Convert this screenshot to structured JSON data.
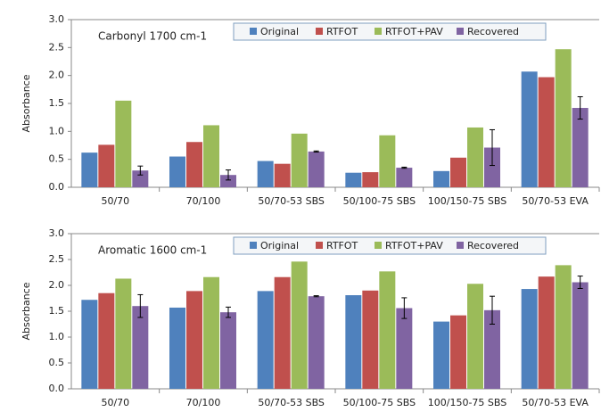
{
  "chart_data": [
    {
      "type": "bar",
      "annotation": "Carbonyl 1700 cm-1",
      "y_label": "Absorbance",
      "categories": [
        "50/70",
        "70/100",
        "50/70-53 SBS",
        "50/100-75 SBS",
        "100/150-75 SBS",
        "50/70-53 EVA"
      ],
      "series": [
        {
          "name": "Original",
          "color": "#4f81bd",
          "values": [
            0.62,
            0.55,
            0.47,
            0.26,
            0.29,
            2.07
          ]
        },
        {
          "name": "RTFOT",
          "color": "#c0504d",
          "values": [
            0.76,
            0.81,
            0.42,
            0.27,
            0.53,
            1.97
          ]
        },
        {
          "name": "RTFOT+PAV",
          "color": "#9bbb59",
          "values": [
            1.55,
            1.11,
            0.96,
            0.93,
            1.07,
            2.47
          ]
        },
        {
          "name": "Recovered",
          "color": "#8064a2",
          "values": [
            0.3,
            0.22,
            0.64,
            0.35,
            0.71,
            1.42
          ],
          "errors": [
            0.08,
            0.09,
            0.01,
            0.01,
            0.32,
            0.2
          ]
        }
      ],
      "ylim": [
        0,
        3
      ],
      "yticks": [
        {
          "value": 0,
          "label": "0.0"
        },
        {
          "value": 0.5,
          "label": "0.5"
        },
        {
          "value": 1,
          "label": "1.0"
        },
        {
          "value": 1.5,
          "label": "1.5"
        },
        {
          "value": 2,
          "label": "2.0"
        },
        {
          "value": 2.5,
          "label": "2.5"
        },
        {
          "value": 3,
          "label": "3.0"
        }
      ],
      "legend": "top"
    },
    {
      "type": "bar",
      "annotation": "Aromatic 1600 cm-1",
      "y_label": "Absorbance",
      "categories": [
        "50/70",
        "70/100",
        "50/70-53 SBS",
        "50/100-75 SBS",
        "100/150-75 SBS",
        "50/70-53 EVA"
      ],
      "series": [
        {
          "name": "Original",
          "color": "#4f81bd",
          "values": [
            1.72,
            1.57,
            1.89,
            1.81,
            1.3,
            1.93
          ]
        },
        {
          "name": "RTFOT",
          "color": "#c0504d",
          "values": [
            1.85,
            1.89,
            2.16,
            1.9,
            1.42,
            2.17
          ]
        },
        {
          "name": "RTFOT+PAV",
          "color": "#9bbb59",
          "values": [
            2.13,
            2.16,
            2.46,
            2.27,
            2.03,
            2.39
          ]
        },
        {
          "name": "Recovered",
          "color": "#8064a2",
          "values": [
            1.6,
            1.48,
            1.79,
            1.56,
            1.52,
            2.06
          ],
          "errors": [
            0.22,
            0.1,
            0.01,
            0.2,
            0.27,
            0.12
          ]
        }
      ],
      "ylim": [
        0,
        3
      ],
      "yticks": [
        {
          "value": 0,
          "label": "0.0"
        },
        {
          "value": 0.5,
          "label": "0.5"
        },
        {
          "value": 1,
          "label": "1.0"
        },
        {
          "value": 1.5,
          "label": "1.5"
        },
        {
          "value": 2,
          "label": "2.0"
        },
        {
          "value": 2.5,
          "label": "2.5"
        },
        {
          "value": 3,
          "label": "3.0"
        }
      ],
      "legend": "top"
    }
  ]
}
